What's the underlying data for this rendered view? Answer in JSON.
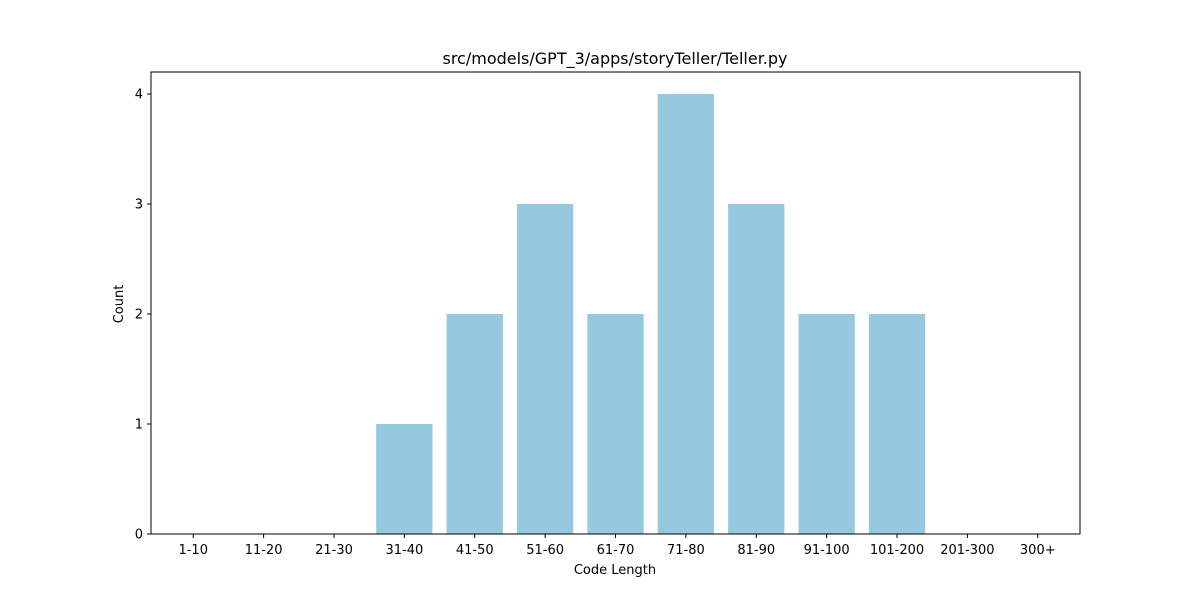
{
  "chart_data": {
    "type": "bar",
    "title": "src/models/GPT_3/apps/storyTeller/Teller.py",
    "xlabel": "Code Length",
    "ylabel": "Count",
    "categories": [
      "1-10",
      "11-20",
      "21-30",
      "31-40",
      "41-50",
      "51-60",
      "61-70",
      "71-80",
      "81-90",
      "91-100",
      "101-200",
      "201-300",
      "300+"
    ],
    "values": [
      0,
      0,
      0,
      1,
      2,
      3,
      2,
      4,
      3,
      2,
      2,
      0,
      0
    ],
    "ylim": [
      0,
      4.2
    ],
    "yticks": [
      0,
      1,
      2,
      3,
      4
    ],
    "bar_color": "#96c9dd",
    "grid": false,
    "legend": false
  }
}
